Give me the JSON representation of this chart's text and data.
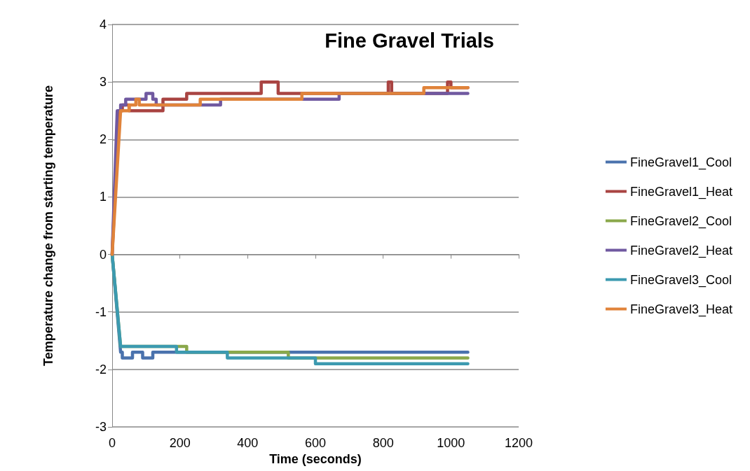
{
  "chart_data": {
    "type": "line",
    "title": "Fine Gravel Trials",
    "xlabel": "Time (seconds)",
    "ylabel": "Temperature change from starting temperature",
    "xlim": [
      0,
      1200
    ],
    "xticks": [
      0,
      200,
      400,
      600,
      800,
      1000,
      1200
    ],
    "ylim": [
      -3,
      4
    ],
    "yticks": [
      -3,
      -2,
      -1,
      0,
      1,
      2,
      3,
      4
    ],
    "grid": "y",
    "legend": "right",
    "marker": "none",
    "line_style": "solid",
    "series": [
      {
        "name": "FineGravel1_Cool",
        "color": "#4a72ad",
        "x": [
          0,
          25,
          30,
          30,
          60,
          60,
          90,
          90,
          120,
          120,
          1050
        ],
        "values": [
          0,
          -1.7,
          -1.7,
          -1.8,
          -1.8,
          -1.7,
          -1.7,
          -1.8,
          -1.8,
          -1.7,
          -1.7
        ]
      },
      {
        "name": "FineGravel1_Heat",
        "color": "#a94442",
        "x": [
          0,
          20,
          30,
          30,
          50,
          50,
          150,
          150,
          220,
          220,
          440,
          440,
          490,
          490,
          815,
          815,
          825,
          825,
          990,
          990,
          1000,
          1000,
          1050
        ],
        "values": [
          0,
          2.5,
          2.5,
          2.6,
          2.6,
          2.5,
          2.5,
          2.7,
          2.7,
          2.8,
          2.8,
          3,
          3,
          2.8,
          2.8,
          3,
          3,
          2.8,
          2.8,
          3,
          3,
          2.9,
          2.9
        ]
      },
      {
        "name": "FineGravel2_Cool",
        "color": "#8aa84b",
        "x": [
          0,
          25,
          220,
          220,
          520,
          520,
          1050
        ],
        "values": [
          0,
          -1.6,
          -1.6,
          -1.7,
          -1.7,
          -1.8,
          -1.8
        ]
      },
      {
        "name": "FineGravel2_Heat",
        "color": "#7059a0",
        "x": [
          0,
          15,
          25,
          25,
          40,
          40,
          100,
          100,
          120,
          120,
          130,
          130,
          320,
          320,
          670,
          670,
          1050
        ],
        "values": [
          0,
          2.5,
          2.5,
          2.6,
          2.6,
          2.7,
          2.7,
          2.8,
          2.8,
          2.7,
          2.7,
          2.6,
          2.6,
          2.7,
          2.7,
          2.8,
          2.8
        ]
      },
      {
        "name": "FineGravel3_Cool",
        "color": "#3c9ab0",
        "x": [
          0,
          25,
          190,
          190,
          340,
          340,
          600,
          600,
          1050
        ],
        "values": [
          0,
          -1.6,
          -1.6,
          -1.7,
          -1.7,
          -1.8,
          -1.8,
          -1.9,
          -1.9
        ]
      },
      {
        "name": "FineGravel3_Heat",
        "color": "#e0833a",
        "x": [
          0,
          25,
          50,
          50,
          70,
          70,
          80,
          80,
          260,
          260,
          560,
          560,
          920,
          920,
          1050
        ],
        "values": [
          0,
          2.5,
          2.5,
          2.6,
          2.6,
          2.7,
          2.7,
          2.6,
          2.6,
          2.7,
          2.7,
          2.8,
          2.8,
          2.9,
          2.9
        ]
      }
    ]
  }
}
